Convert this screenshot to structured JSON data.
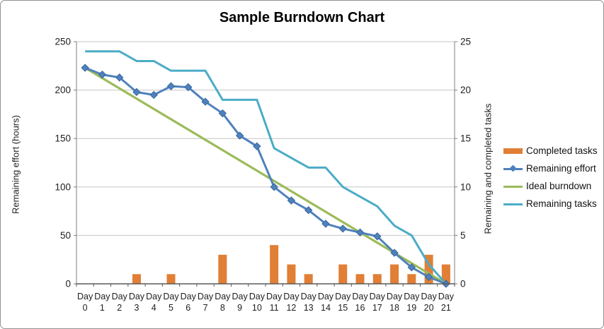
{
  "title": "Sample Burndown Chart",
  "chart_data": {
    "type": "line",
    "title": "Sample Burndown Chart",
    "x_labels": [
      "Day 0",
      "Day 1",
      "Day 2",
      "Day 3",
      "Day 4",
      "Day 5",
      "Day 6",
      "Day 7",
      "Day 8",
      "Day 9",
      "Day 10",
      "Day 11",
      "Day 12",
      "Day 13",
      "Day 14",
      "Day 15",
      "Day 16",
      "Day 17",
      "Day 18",
      "Day 19",
      "Day 20",
      "Day 21"
    ],
    "left_axis": {
      "title": "Remaining effort (hours)",
      "min": 0,
      "max": 250,
      "ticks": [
        0,
        50,
        100,
        150,
        200,
        250
      ]
    },
    "right_axis": {
      "title": "Remaining and completed tasks",
      "min": 0,
      "max": 25,
      "ticks": [
        0,
        5,
        10,
        15,
        20,
        25
      ]
    },
    "grid": "horizontal",
    "legend_position": "right",
    "series": [
      {
        "name": "Completed tasks",
        "type": "bar",
        "axis": "right",
        "color": "#E07F35",
        "values": [
          0,
          0,
          0,
          1,
          0,
          1,
          0,
          0,
          3,
          0,
          0,
          4,
          2,
          1,
          0,
          2,
          1,
          1,
          2,
          1,
          3,
          2
        ]
      },
      {
        "name": "Remaining effort",
        "type": "line",
        "axis": "left",
        "color": "#4F81BD",
        "marker": "diamond",
        "marker_edge": "#3A679C",
        "values": [
          223,
          216,
          213,
          198,
          195,
          204,
          203,
          188,
          176,
          153,
          142,
          100,
          86,
          76,
          62,
          57,
          53,
          49,
          32,
          17,
          7,
          0
        ]
      },
      {
        "name": "Ideal burndown",
        "type": "line",
        "axis": "left",
        "color": "#9BBB59",
        "x": [
          0,
          21
        ],
        "values": [
          223,
          0
        ]
      },
      {
        "name": "Remaining tasks",
        "type": "line",
        "axis": "right",
        "color": "#4BACC6",
        "values": [
          24,
          24,
          24,
          23,
          23,
          22,
          22,
          22,
          19,
          19,
          19,
          14,
          13,
          12,
          12,
          10,
          9,
          8,
          6,
          5,
          2,
          0
        ]
      }
    ]
  }
}
